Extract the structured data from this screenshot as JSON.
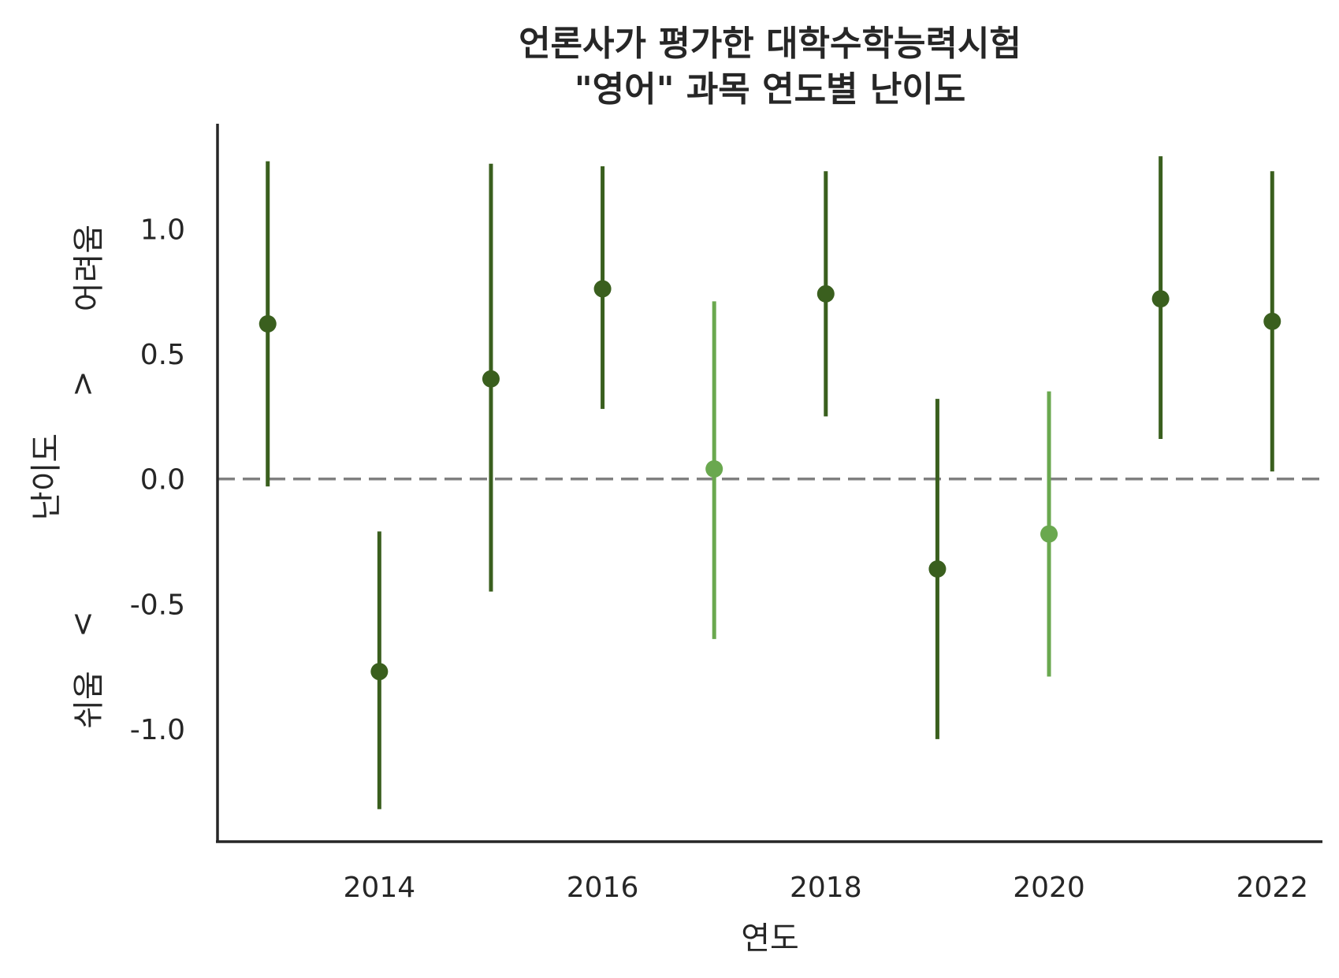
{
  "chart_data": {
    "type": "scatter",
    "title_lines": [
      "언론사가 평가한 대학수학능력시험",
      "\"영어\" 과목 연도별 난이도"
    ],
    "xlabel": "연도",
    "ylabel": {
      "left_high": "어려움",
      "left_gt": ">",
      "center": "난이도",
      "left_lt": "<",
      "left_low": "쉬움"
    },
    "xlim": [
      2012.55,
      2022.45
    ],
    "ylim": [
      -1.45,
      1.42
    ],
    "xticks": [
      2014,
      2016,
      2018,
      2020,
      2022
    ],
    "xtick_labels": [
      "2014",
      "2016",
      "2018",
      "2020",
      "2022"
    ],
    "yticks": [
      1.0,
      0.5,
      0.0,
      -0.5,
      -1.0
    ],
    "ytick_labels": [
      "1.0",
      "0.5",
      "0.0",
      "-0.5",
      "-1.0"
    ],
    "reference_line": {
      "y": 0.0,
      "style": "dashed",
      "color": "#808080"
    },
    "colors": {
      "dark": "#3a5f1e",
      "light": "#6aa84f"
    },
    "points": [
      {
        "x": 2013,
        "y": 0.62,
        "low": -0.03,
        "high": 1.27,
        "shade": "dark"
      },
      {
        "x": 2014,
        "y": -0.77,
        "low": -1.32,
        "high": -0.21,
        "shade": "dark"
      },
      {
        "x": 2015,
        "y": 0.4,
        "low": -0.45,
        "high": 1.26,
        "shade": "dark"
      },
      {
        "x": 2016,
        "y": 0.76,
        "low": 0.28,
        "high": 1.25,
        "shade": "dark"
      },
      {
        "x": 2017,
        "y": 0.04,
        "low": -0.64,
        "high": 0.71,
        "shade": "light"
      },
      {
        "x": 2018,
        "y": 0.74,
        "low": 0.25,
        "high": 1.23,
        "shade": "dark"
      },
      {
        "x": 2019,
        "y": -0.36,
        "low": -1.04,
        "high": 0.32,
        "shade": "dark"
      },
      {
        "x": 2020,
        "y": -0.22,
        "low": -0.79,
        "high": 0.35,
        "shade": "light"
      },
      {
        "x": 2021,
        "y": 0.72,
        "low": 0.16,
        "high": 1.29,
        "shade": "dark"
      },
      {
        "x": 2022,
        "y": 0.63,
        "low": 0.03,
        "high": 1.23,
        "shade": "dark"
      }
    ]
  }
}
